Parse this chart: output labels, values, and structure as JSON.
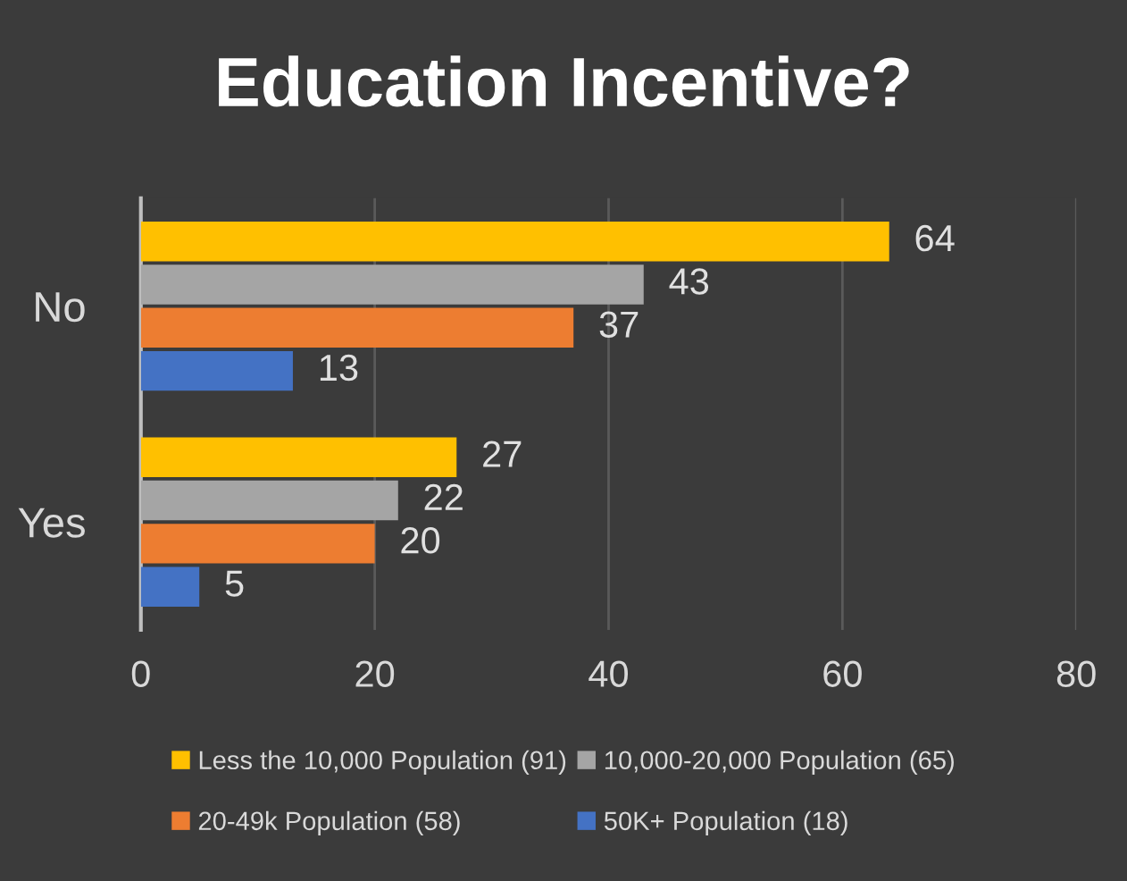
{
  "chart_data": {
    "type": "bar",
    "orientation": "horizontal",
    "title": "Education Incentive?",
    "categories": [
      "No",
      "Yes"
    ],
    "series": [
      {
        "name": "Less the 10,000 Population (91)",
        "color": "#ffc000",
        "values": [
          64,
          27
        ]
      },
      {
        "name": "10,000-20,000 Population (65)",
        "color": "#a5a5a5",
        "values": [
          43,
          22
        ]
      },
      {
        "name": "20-49k Population (58)",
        "color": "#ed7d31",
        "values": [
          37,
          20
        ]
      },
      {
        "name": "50K+ Population (18)",
        "color": "#4472c4",
        "values": [
          13,
          5
        ]
      }
    ],
    "xlim": [
      0,
      80
    ],
    "xticks": [
      0,
      20,
      40,
      60,
      80
    ],
    "grid": "x",
    "legend": "bottom",
    "data_labels": true
  }
}
